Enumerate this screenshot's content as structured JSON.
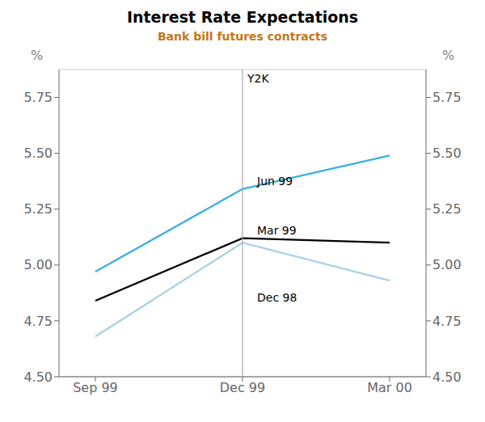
{
  "chart_data": {
    "type": "line",
    "title": "Interest Rate Expectations",
    "subtitle": "Bank bill futures contracts",
    "categories": [
      "Sep 99",
      "Dec 99",
      "Mar 00"
    ],
    "series": [
      {
        "name": "Jun 99",
        "color": "#3ab0e0",
        "values": [
          4.97,
          5.34,
          5.49
        ]
      },
      {
        "name": "Mar 99",
        "color": "#000000",
        "values": [
          4.84,
          5.12,
          5.1
        ]
      },
      {
        "name": "Dec 98",
        "color": "#a8d0e8",
        "values": [
          4.68,
          5.1,
          4.93
        ]
      }
    ],
    "ylim": [
      4.5,
      5.875
    ],
    "yticks": [
      {
        "value": 4.5,
        "label": "4.50"
      },
      {
        "value": 4.75,
        "label": "4.75"
      },
      {
        "value": 5.0,
        "label": "5.00"
      },
      {
        "value": 5.25,
        "label": "5.25"
      },
      {
        "value": 5.5,
        "label": "5.50"
      },
      {
        "value": 5.75,
        "label": "5.75"
      }
    ],
    "y2lim": [
      4.5,
      5.875
    ],
    "y2ticks": [
      {
        "value": 4.5,
        "label": "4.50"
      },
      {
        "value": 4.75,
        "label": "4.75"
      },
      {
        "value": 5.0,
        "label": "5.00"
      },
      {
        "value": 5.25,
        "label": "5.25"
      },
      {
        "value": 5.5,
        "label": "5.50"
      },
      {
        "value": 5.75,
        "label": "5.75"
      }
    ],
    "ylabel": "%",
    "y2label": "%",
    "grid": true,
    "vline": {
      "x": "Dec 99",
      "label": "Y2K",
      "color": "#aaaaaa"
    },
    "annotations": [
      {
        "text": "Jun 99",
        "x": "Dec 99",
        "y": 5.375
      },
      {
        "text": "Mar 99",
        "x": "Dec 99",
        "y": 5.155
      },
      {
        "text": "Dec 98",
        "x": "Dec 99",
        "y": 4.855
      }
    ]
  }
}
